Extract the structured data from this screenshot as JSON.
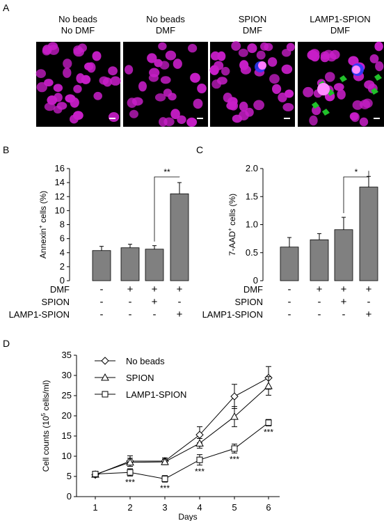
{
  "panels": {
    "a": "A",
    "b": "B",
    "c": "C",
    "d": "D"
  },
  "micrographs": [
    {
      "title_line1": "No beads",
      "title_line2": "No DMF"
    },
    {
      "title_line1": "No beads",
      "title_line2": "DMF"
    },
    {
      "title_line1": "SPION",
      "title_line2": "DMF"
    },
    {
      "title_line1": "LAMP1-SPION",
      "title_line2": "DMF"
    }
  ],
  "colors": {
    "nuclei": "#c81ec8",
    "bead_green": "#21c02a",
    "bead_blue": "#2a3cff",
    "bar": "#808080"
  },
  "treatment_table": {
    "rows": [
      {
        "label": "DMF",
        "signs": [
          "-",
          "+",
          "+",
          "+"
        ]
      },
      {
        "label": "SPION",
        "signs": [
          "-",
          "-",
          "+",
          "-"
        ]
      },
      {
        "label": "LAMP1-SPION",
        "signs": [
          "-",
          "-",
          "-",
          "+"
        ]
      }
    ]
  },
  "chart_data": [
    {
      "type": "bar",
      "panel": "B",
      "ylabel": "Annexin+ cells (%)",
      "ylabel_main": "Annexin",
      "ylabel_sup": "+",
      "ylabel_tail": " cells (%)",
      "ylim": [
        0,
        16
      ],
      "yticks": [
        "0",
        "2",
        "4",
        "6",
        "8",
        "10",
        "12",
        "14",
        "16"
      ],
      "values": [
        4.3,
        4.7,
        4.5,
        12.4
      ],
      "errors": [
        0.6,
        0.5,
        0.5,
        1.6
      ],
      "significance": {
        "from": 2,
        "to": 3,
        "label": "**"
      }
    },
    {
      "type": "bar",
      "panel": "C",
      "ylabel": "7-AAD+ cells (%)",
      "ylabel_main": "7-AAD",
      "ylabel_sup": "+",
      "ylabel_tail": " cells (%)",
      "ylim": [
        0,
        2.0
      ],
      "yticks": [
        "0",
        "0.5",
        "1.0",
        "1.5",
        "2.0"
      ],
      "values": [
        0.6,
        0.73,
        0.91,
        1.67
      ],
      "errors": [
        0.17,
        0.11,
        0.22,
        0.19
      ],
      "significance": {
        "from": 2,
        "to": 3,
        "label": "*"
      }
    },
    {
      "type": "line",
      "panel": "D",
      "xlabel": "Days",
      "ylabel": "Cell counts (10^5 cells/ml)",
      "ylabel_main": "Cell counts (10",
      "ylabel_sup": "5",
      "ylabel_tail": " cells/ml)",
      "x": [
        1,
        2,
        3,
        4,
        5,
        6
      ],
      "xticks": [
        "1",
        "2",
        "3",
        "4",
        "5",
        "6"
      ],
      "ylim": [
        0,
        35
      ],
      "yticks": [
        "0",
        "5",
        "10",
        "15",
        "20",
        "25",
        "30",
        "35"
      ],
      "series": [
        {
          "name": "No beads",
          "marker": "diamond",
          "values": [
            5.4,
            8.8,
            8.8,
            15.3,
            24.8,
            29.4
          ],
          "errors": [
            0.4,
            1.3,
            0.8,
            2.0,
            3.0,
            2.8
          ]
        },
        {
          "name": "SPION",
          "marker": "triangle",
          "values": [
            5.5,
            8.5,
            8.6,
            13.2,
            19.8,
            27.4
          ],
          "errors": [
            0.4,
            1.0,
            0.7,
            1.2,
            2.5,
            2.3
          ]
        },
        {
          "name": "LAMP1-SPION",
          "marker": "square",
          "values": [
            5.6,
            6.0,
            4.4,
            9.1,
            11.9,
            18.3
          ],
          "errors": [
            0.4,
            0.9,
            0.8,
            1.3,
            1.1,
            0.8
          ]
        }
      ],
      "annotations": [
        {
          "x": 2,
          "label": "***"
        },
        {
          "x": 3,
          "label": "***"
        },
        {
          "x": 4,
          "label": "***"
        },
        {
          "x": 5,
          "label": "***"
        },
        {
          "x": 6,
          "label": "***"
        }
      ]
    }
  ]
}
